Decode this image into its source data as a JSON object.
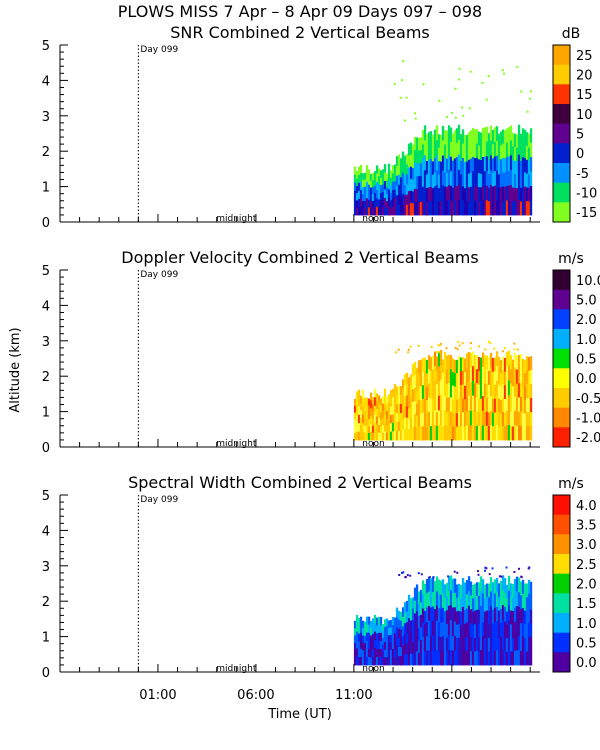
{
  "figure": {
    "title": "PLOWS MISS   7 Apr –  8 Apr 09 Days 097 – 098",
    "ylabel": "Altitude (km)",
    "xlabel": "Time (UT)",
    "xticks": [
      "01:00",
      "06:00",
      "11:00",
      "16:00"
    ]
  },
  "chart_data": [
    {
      "type": "heatmap",
      "title": "SNR Combined 2 Vertical Beams",
      "unit": "dB",
      "ylim": [
        0,
        5
      ],
      "yticks": [
        "0",
        "1",
        "2",
        "3",
        "4",
        "5"
      ],
      "xrange_hours": [
        -4,
        20.5
      ],
      "day_marker": {
        "label": "Day 099",
        "hour": 0
      },
      "annotations": [
        {
          "label": "midnight",
          "hour": 5
        },
        {
          "label": "noon",
          "hour": 12
        }
      ],
      "colorbar": {
        "labels": [
          "25",
          "20",
          "15",
          "10",
          "5",
          "0",
          "-5",
          "-10",
          "-15"
        ],
        "colors": [
          "#ffa500",
          "#ffcc00",
          "#ff3300",
          "#400040",
          "#600090",
          "#0020d0",
          "#0090ff",
          "#00e060",
          "#80ff20"
        ]
      },
      "data_extent_hours": [
        11,
        20
      ],
      "max_echo_height_km": 2.9,
      "palette_order": [
        "#80ff20",
        "#00e060",
        "#00b4ff",
        "#0070ff",
        "#0020d0",
        "#2000b0",
        "#600090",
        "#ff3300"
      ]
    },
    {
      "type": "heatmap",
      "title": "Doppler Velocity Combined 2 Vertical Beams",
      "unit": "m/s",
      "ylim": [
        0,
        5
      ],
      "yticks": [
        "0",
        "1",
        "2",
        "3",
        "4",
        "5"
      ],
      "xrange_hours": [
        -4,
        20.5
      ],
      "day_marker": {
        "label": "Day 099",
        "hour": 0
      },
      "annotations": [
        {
          "label": "midnight",
          "hour": 5
        },
        {
          "label": "noon",
          "hour": 12
        }
      ],
      "colorbar": {
        "labels": [
          "10.0",
          "5.0",
          "2.0",
          "1.0",
          "0.5",
          "0.0",
          "-0.5",
          "-1.0",
          "-2.0"
        ],
        "colors": [
          "#300030",
          "#600090",
          "#0040ff",
          "#00b0ff",
          "#00e000",
          "#ffff00",
          "#ffcc00",
          "#ff8800",
          "#ff2000"
        ]
      },
      "data_extent_hours": [
        11,
        20
      ],
      "max_echo_height_km": 2.9,
      "palette_order": [
        "#ffe000",
        "#ffc800",
        "#ffaa00",
        "#ffff40",
        "#ff8800",
        "#ff3300",
        "#00d000",
        "#ffffff"
      ]
    },
    {
      "type": "heatmap",
      "title": "Spectral Width Combined 2 Vertical Beams",
      "unit": "m/s",
      "ylim": [
        0,
        5
      ],
      "yticks": [
        "0",
        "1",
        "2",
        "3",
        "4",
        "5"
      ],
      "xrange_hours": [
        -4,
        20.5
      ],
      "day_marker": {
        "label": "Day 099",
        "hour": 0
      },
      "annotations": [
        {
          "label": "midnight",
          "hour": 5
        },
        {
          "label": "noon",
          "hour": 12
        }
      ],
      "colorbar": {
        "labels": [
          "4.0",
          "3.5",
          "3.0",
          "2.5",
          "2.0",
          "1.5",
          "1.0",
          "0.5",
          "0.0"
        ],
        "colors": [
          "#ff1000",
          "#ff5000",
          "#ff9000",
          "#ffdd00",
          "#00d000",
          "#00e0a0",
          "#00b0ff",
          "#0030ff",
          "#5000a0"
        ]
      },
      "data_extent_hours": [
        11,
        20
      ],
      "max_echo_height_km": 2.9,
      "palette_order": [
        "#5000a0",
        "#3010c0",
        "#0030ff",
        "#0060ff",
        "#00b0ff",
        "#00e0a0",
        "#ffffff"
      ]
    }
  ]
}
